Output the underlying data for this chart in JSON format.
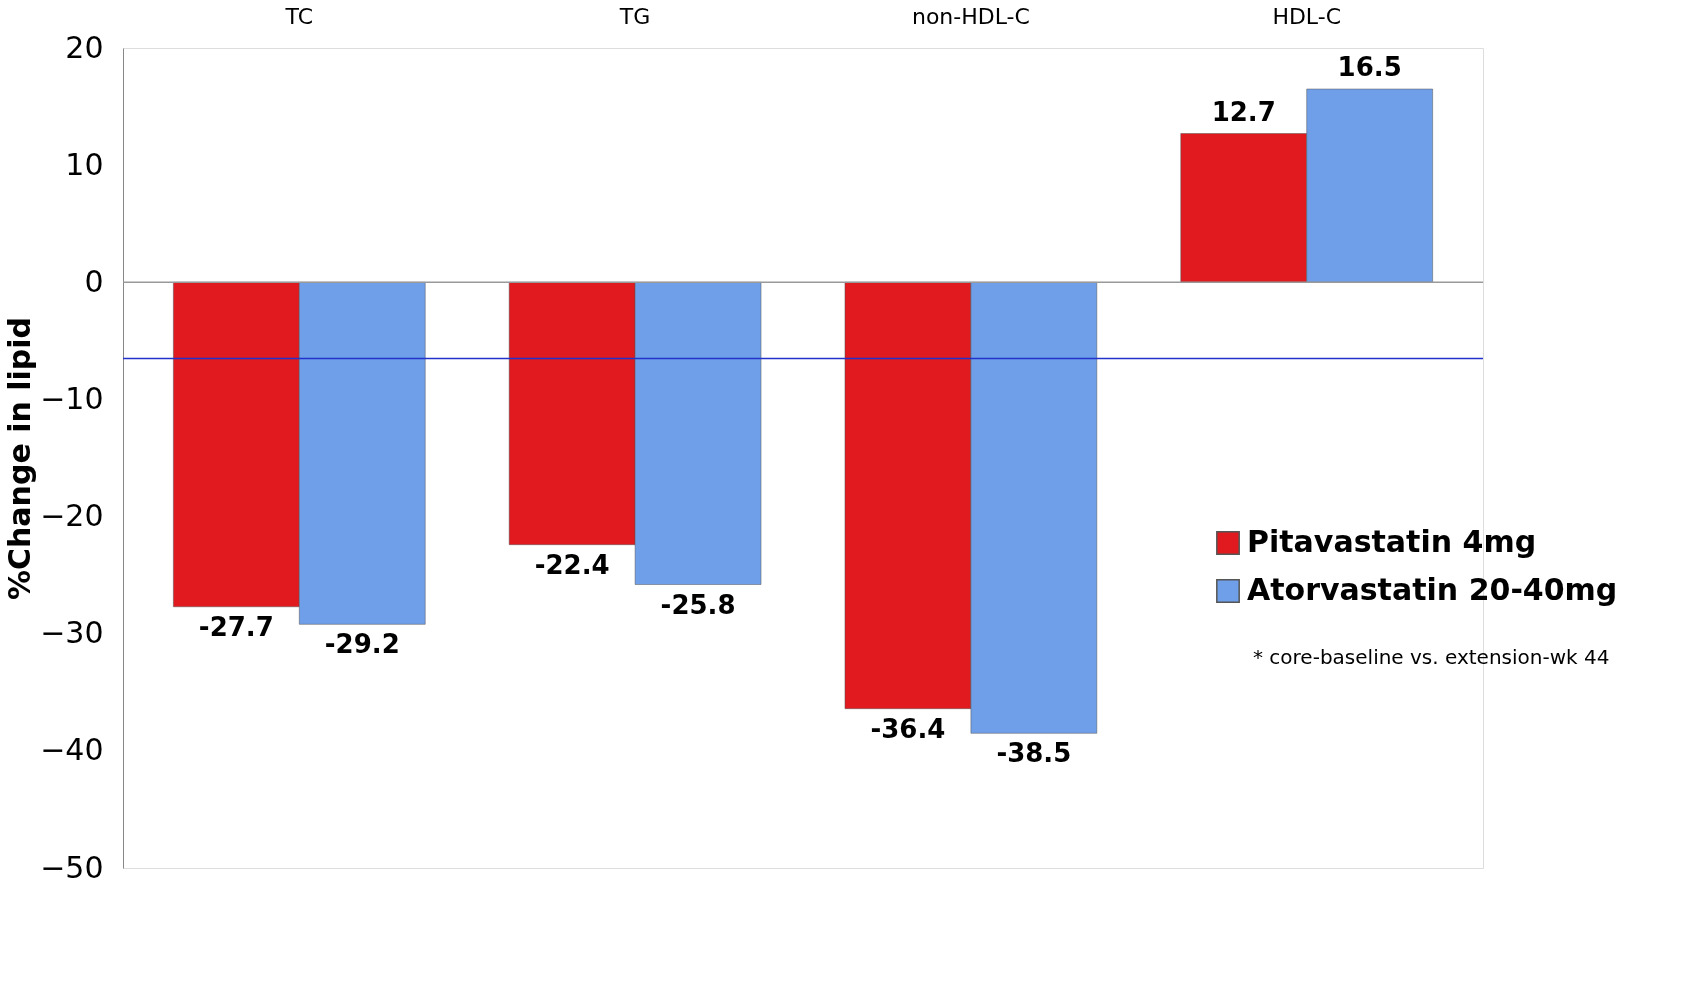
{
  "chart_data": {
    "type": "bar",
    "ylabel": "%Change in lipid",
    "categories": [
      "TC",
      "TG",
      "non-HDL-C",
      "HDL-C"
    ],
    "series": [
      {
        "name": "Pitavastatin 4mg",
        "color": "#e01a1f",
        "values": [
          -27.7,
          -22.4,
          -36.4,
          12.7
        ]
      },
      {
        "name": "Atorvastatin 20-40mg",
        "color": "#6f9fe8",
        "values": [
          -29.2,
          -25.8,
          -38.5,
          16.5
        ]
      }
    ],
    "ylim": [
      -50,
      20
    ],
    "yticks": [
      -50,
      -40,
      -30,
      -20,
      -10,
      0,
      10,
      20
    ],
    "data_labels": true,
    "grid": false,
    "legend": "right",
    "ref_lines": [
      {
        "axis": "y",
        "value": 0,
        "color": "#999999"
      },
      {
        "axis": "y",
        "value": -6.5,
        "color": "#2233cc"
      }
    ],
    "annotations": [
      "* core-baseline vs. extension-wk 44"
    ]
  }
}
